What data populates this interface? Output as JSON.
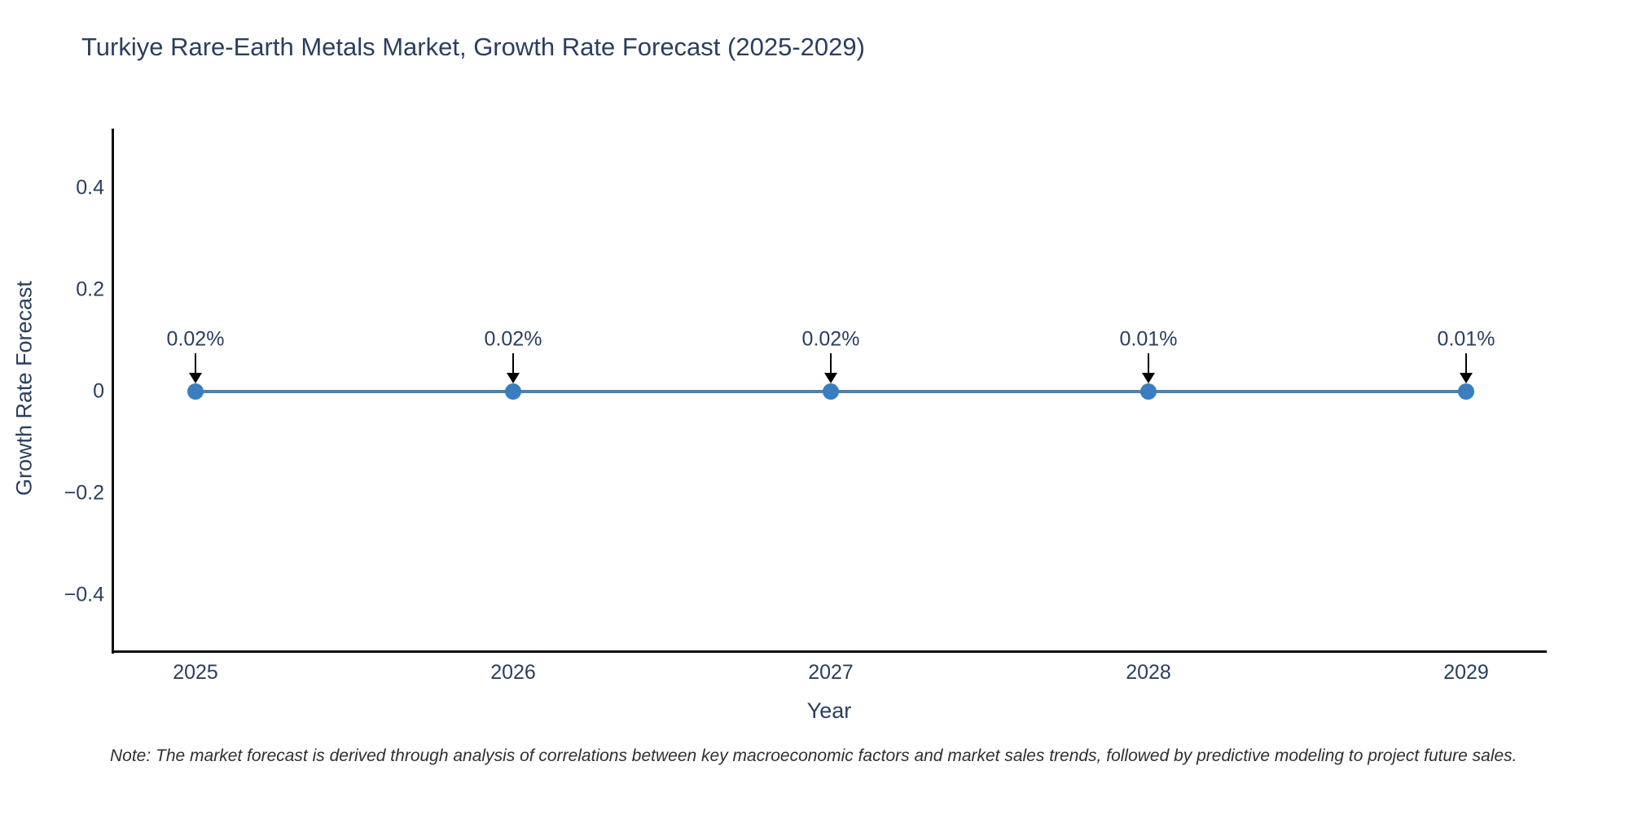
{
  "header": {
    "title": "Turkiye Rare-Earth Metals Market, Growth Rate Forecast (2025-2029)"
  },
  "footer": {
    "note": "Note: The market forecast is derived through analysis of correlations between key macroeconomic factors and market sales trends, followed by predictive modeling to project future sales."
  },
  "chart_data": {
    "type": "line",
    "title": "Turkiye Rare-Earth Metals Market, Growth Rate Forecast (2025-2029)",
    "xlabel": "Year",
    "ylabel": "Growth Rate Forecast",
    "categories": [
      "2025",
      "2026",
      "2027",
      "2028",
      "2029"
    ],
    "series": [
      {
        "name": "Growth Rate Forecast",
        "values": [
          0.0002,
          0.0002,
          0.0002,
          0.0001,
          0.0001
        ],
        "point_labels": [
          "0.02%",
          "0.02%",
          "0.02%",
          "0.01%",
          "0.01%"
        ]
      }
    ],
    "yticks": [
      0.4,
      0.2,
      0,
      -0.2,
      -0.4
    ],
    "ytick_labels": [
      "0.4",
      "0.2",
      "0",
      "−0.2",
      "−0.4"
    ],
    "ylim": [
      -0.5,
      0.52
    ],
    "grid": false,
    "legend": false,
    "annotations_have_arrows": true,
    "colors": {
      "line": "#4c82ab",
      "marker": "#3a7ebf",
      "axis_line": "#0d0d0d",
      "text": "#2a3f5f",
      "annotation_arrow": "#000000",
      "note_text": "#2f2f2f",
      "background": "#ffffff"
    }
  }
}
